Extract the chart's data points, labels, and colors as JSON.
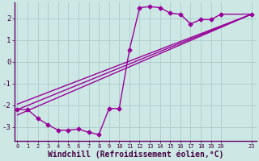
{
  "bg_color": "#cde8e4",
  "grid_color": "#a8cccc",
  "line_color": "#990099",
  "marker": "D",
  "markersize": 2.5,
  "linewidth": 1.0,
  "xlabel": "Windchill (Refroidissement éolien,°C)",
  "xlabel_fontsize": 7,
  "yticks": [
    -3,
    -2,
    -1,
    0,
    1,
    2
  ],
  "xticks": [
    0,
    1,
    2,
    3,
    4,
    5,
    6,
    7,
    8,
    9,
    10,
    11,
    12,
    13,
    14,
    15,
    16,
    17,
    18,
    19,
    20,
    23
  ],
  "xlim": [
    -0.3,
    23.5
  ],
  "ylim": [
    -3.65,
    2.75
  ],
  "series1_x": [
    0,
    1,
    2,
    3,
    4,
    5,
    6,
    7,
    8,
    9,
    10,
    11,
    12,
    13,
    14,
    15,
    16,
    17,
    18,
    19,
    20,
    23
  ],
  "series1_y": [
    -2.2,
    -2.2,
    -2.6,
    -2.9,
    -3.15,
    -3.15,
    -3.1,
    -3.25,
    -3.35,
    -2.15,
    -2.15,
    0.55,
    2.5,
    2.55,
    2.5,
    2.25,
    2.2,
    1.75,
    1.95,
    1.95,
    2.2,
    2.2
  ],
  "series2_x": [
    0,
    23
  ],
  "series2_y": [
    -2.2,
    2.2
  ],
  "series3_x": [
    0,
    23
  ],
  "series3_y": [
    -1.95,
    2.2
  ],
  "series4_x": [
    0,
    23
  ],
  "series4_y": [
    -2.45,
    2.2
  ],
  "spine_color": "#660066",
  "tick_color": "#440044",
  "label_color": "#440044"
}
